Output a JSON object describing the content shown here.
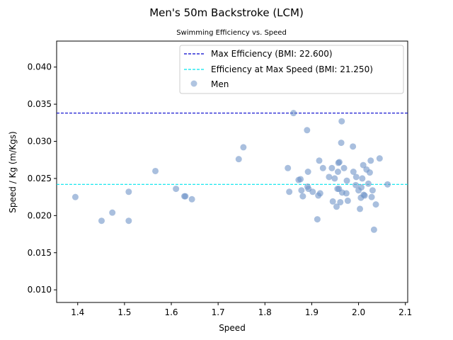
{
  "chart_data": {
    "type": "scatter",
    "title": "Men's 50m Backstroke (LCM)",
    "subtitle": "Swimming Efficiency vs. Speed",
    "xlabel": "Speed",
    "ylabel": "Speed / Kg (m/Kgs)",
    "xlim": [
      1.355,
      2.105
    ],
    "ylim": [
      0.0083,
      0.0435
    ],
    "xticks": [
      1.4,
      1.5,
      1.6,
      1.7,
      1.8,
      1.9,
      2.0,
      2.1
    ],
    "xtick_labels": [
      "1.4",
      "1.5",
      "1.6",
      "1.7",
      "1.8",
      "1.9",
      "2.0",
      "2.1"
    ],
    "yticks": [
      0.01,
      0.015,
      0.02,
      0.025,
      0.03,
      0.035,
      0.04
    ],
    "ytick_labels": [
      "0.010",
      "0.015",
      "0.020",
      "0.025",
      "0.030",
      "0.035",
      "0.040"
    ],
    "grid": false,
    "legend_position": "top-right",
    "reference_lines": [
      {
        "label": "Max Efficiency (BMI: 22.600)",
        "y": 0.0338,
        "color": "#0000cd",
        "style": "dashed"
      },
      {
        "label": "Efficiency at Max Speed (BMI: 21.250)",
        "y": 0.0242,
        "color": "#00e5ee",
        "style": "dashed"
      }
    ],
    "series": [
      {
        "name": "Men",
        "color": "#6f95c8",
        "points": [
          [
            1.395,
            0.0225
          ],
          [
            1.451,
            0.0193
          ],
          [
            1.474,
            0.0204
          ],
          [
            1.509,
            0.0193
          ],
          [
            1.509,
            0.0232
          ],
          [
            1.566,
            0.026
          ],
          [
            1.61,
            0.0236
          ],
          [
            1.628,
            0.0226
          ],
          [
            1.63,
            0.0226
          ],
          [
            1.644,
            0.0222
          ],
          [
            1.744,
            0.0276
          ],
          [
            1.754,
            0.0292
          ],
          [
            1.849,
            0.0264
          ],
          [
            1.852,
            0.0232
          ],
          [
            1.861,
            0.0338
          ],
          [
            1.872,
            0.0248
          ],
          [
            1.876,
            0.0249
          ],
          [
            1.878,
            0.0234
          ],
          [
            1.881,
            0.0226
          ],
          [
            1.89,
            0.0315
          ],
          [
            1.891,
            0.0239
          ],
          [
            1.892,
            0.0259
          ],
          [
            1.893,
            0.0236
          ],
          [
            1.902,
            0.0232
          ],
          [
            1.912,
            0.0195
          ],
          [
            1.914,
            0.0227
          ],
          [
            1.916,
            0.0274
          ],
          [
            1.918,
            0.023
          ],
          [
            1.924,
            0.0264
          ],
          [
            1.937,
            0.0252
          ],
          [
            1.943,
            0.0264
          ],
          [
            1.945,
            0.0219
          ],
          [
            1.949,
            0.025
          ],
          [
            1.953,
            0.0212
          ],
          [
            1.955,
            0.0236
          ],
          [
            1.956,
            0.0259
          ],
          [
            1.957,
            0.0271
          ],
          [
            1.958,
            0.0236
          ],
          [
            1.959,
            0.0272
          ],
          [
            1.961,
            0.0218
          ],
          [
            1.963,
            0.0298
          ],
          [
            1.964,
            0.0327
          ],
          [
            1.965,
            0.0231
          ],
          [
            1.969,
            0.0264
          ],
          [
            1.974,
            0.023
          ],
          [
            1.975,
            0.0247
          ],
          [
            1.977,
            0.022
          ],
          [
            1.988,
            0.0293
          ],
          [
            1.989,
            0.0259
          ],
          [
            1.994,
            0.0241
          ],
          [
            1.995,
            0.0252
          ],
          [
            2.0,
            0.0234
          ],
          [
            2.003,
            0.0209
          ],
          [
            2.005,
            0.0224
          ],
          [
            2.006,
            0.0238
          ],
          [
            2.008,
            0.025
          ],
          [
            2.01,
            0.0268
          ],
          [
            2.011,
            0.0228
          ],
          [
            2.013,
            0.0227
          ],
          [
            2.017,
            0.0262
          ],
          [
            2.021,
            0.0243
          ],
          [
            2.024,
            0.0258
          ],
          [
            2.026,
            0.0274
          ],
          [
            2.028,
            0.0225
          ],
          [
            2.03,
            0.0234
          ],
          [
            2.033,
            0.0181
          ],
          [
            2.037,
            0.0215
          ],
          [
            2.045,
            0.0277
          ],
          [
            2.062,
            0.0242
          ]
        ]
      }
    ]
  }
}
